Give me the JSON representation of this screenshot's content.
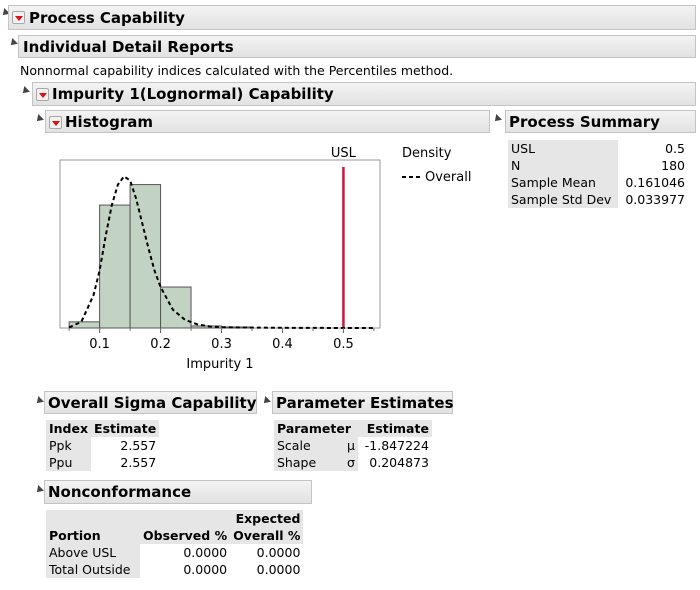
{
  "report": {
    "title": "Process Capability",
    "detail_title": "Individual Detail Reports",
    "note": "Nonnormal capability indices calculated with the Percentiles method.",
    "capability_title": "Impurity 1(Lognormal) Capability",
    "histogram_title": "Histogram",
    "summary_title": "Process Summary"
  },
  "histogram": {
    "usl_label": "USL",
    "legend_title": "Density",
    "legend_item": "Overall",
    "xlabel": "Impurity 1",
    "accent_color": "#d0143c",
    "bar_color": "#c3d3c3"
  },
  "chart_data": {
    "type": "bar",
    "title": "",
    "xlabel": "Impurity 1",
    "ylabel": "",
    "xlim": [
      0.035,
      0.56
    ],
    "xticks": [
      "0.1",
      "0.2",
      "0.3",
      "0.4",
      "0.5"
    ],
    "xtick_values": [
      0.1,
      0.2,
      0.3,
      0.4,
      0.5
    ],
    "bin_edges": [
      0.05,
      0.1,
      0.15,
      0.2,
      0.25,
      0.3,
      0.35
    ],
    "counts": [
      3,
      60,
      70,
      20,
      1,
      0.5
    ],
    "usl": 0.5,
    "density_curve": {
      "name": "Overall",
      "x": [
        0.05,
        0.07,
        0.09,
        0.1,
        0.11,
        0.12,
        0.13,
        0.14,
        0.15,
        0.16,
        0.17,
        0.18,
        0.19,
        0.2,
        0.22,
        0.24,
        0.26,
        0.28,
        0.3,
        0.35,
        0.4,
        0.45,
        0.5,
        0.55
      ],
      "y": [
        0.3,
        3,
        16,
        28,
        45,
        60,
        70,
        74,
        72,
        63,
        51,
        39,
        28,
        20,
        9,
        4,
        1.8,
        0.8,
        0.4,
        0.2,
        0.1,
        0.05,
        0.02,
        0.01
      ]
    },
    "ylim": [
      0,
      82
    ]
  },
  "summary": {
    "rows": [
      {
        "label": "USL",
        "value": "0.5"
      },
      {
        "label": "N",
        "value": "180"
      },
      {
        "label": "Sample Mean",
        "value": "0.161046"
      },
      {
        "label": "Sample Std Dev",
        "value": "0.033977"
      }
    ]
  },
  "sigma": {
    "title": "Overall Sigma Capability",
    "headers": [
      "Index",
      "Estimate"
    ],
    "rows": [
      {
        "index": "Ppk",
        "estimate": "2.557"
      },
      {
        "index": "Ppu",
        "estimate": "2.557"
      }
    ]
  },
  "params": {
    "title": "Parameter Estimates",
    "headers": [
      "Parameter",
      "Estimate"
    ],
    "rows": [
      {
        "parameter": "Scale",
        "symbol": "μ",
        "estimate": "-1.847224"
      },
      {
        "parameter": "Shape",
        "symbol": "σ",
        "estimate": "0.204873"
      }
    ]
  },
  "nonconf": {
    "title": "Nonconformance",
    "headers": {
      "portion": "Portion",
      "observed": "Observed %",
      "expected_line1": "Expected",
      "expected_line2": "Overall %"
    },
    "rows": [
      {
        "portion": "Above USL",
        "observed": "0.0000",
        "expected": "0.0000"
      },
      {
        "portion": "Total Outside",
        "observed": "0.0000",
        "expected": "0.0000"
      }
    ]
  }
}
